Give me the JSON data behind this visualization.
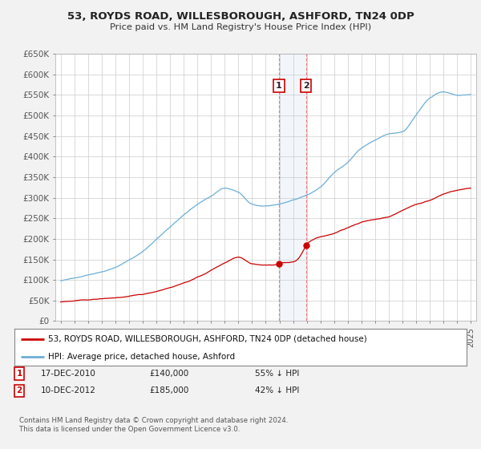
{
  "title": "53, ROYDS ROAD, WILLESBOROUGH, ASHFORD, TN24 0DP",
  "subtitle": "Price paid vs. HM Land Registry's House Price Index (HPI)",
  "ylim": [
    0,
    650000
  ],
  "yticks": [
    0,
    50000,
    100000,
    150000,
    200000,
    250000,
    300000,
    350000,
    400000,
    450000,
    500000,
    550000,
    600000,
    650000
  ],
  "ytick_labels": [
    "£0",
    "£50K",
    "£100K",
    "£150K",
    "£200K",
    "£250K",
    "£300K",
    "£350K",
    "£400K",
    "£450K",
    "£500K",
    "£550K",
    "£600K",
    "£650K"
  ],
  "hpi_color": "#6baed6",
  "price_color": "#cc0000",
  "sale1_date": 2010.96,
  "sale1_price": 140000,
  "sale2_date": 2012.94,
  "sale2_price": 185000,
  "legend1": "53, ROYDS ROAD, WILLESBOROUGH, ASHFORD, TN24 0DP (detached house)",
  "legend2": "HPI: Average price, detached house, Ashford",
  "footer": "Contains HM Land Registry data © Crown copyright and database right 2024.\nThis data is licensed under the Open Government Licence v3.0.",
  "background_color": "#f2f2f2",
  "plot_bg": "#ffffff",
  "hpi_seed": 42,
  "hpi_control_years": [
    1995,
    1996,
    1997,
    1998,
    1999,
    2000,
    2001,
    2002,
    2003,
    2004,
    2005,
    2006,
    2007,
    2008,
    2009,
    2010,
    2011,
    2012,
    2013,
    2014,
    2015,
    2016,
    2017,
    2018,
    2019,
    2020,
    2021,
    2022,
    2023,
    2024,
    2025
  ],
  "hpi_control_values": [
    97000,
    103000,
    112000,
    120000,
    132000,
    150000,
    170000,
    200000,
    230000,
    260000,
    285000,
    305000,
    325000,
    315000,
    285000,
    280000,
    285000,
    295000,
    305000,
    325000,
    360000,
    385000,
    420000,
    440000,
    455000,
    460000,
    500000,
    540000,
    555000,
    548000,
    550000
  ],
  "price_control_years": [
    1995,
    1997,
    1999,
    2001,
    2003,
    2005,
    2007,
    2008,
    2009,
    2010,
    2010.96,
    2011,
    2012,
    2012.94,
    2013,
    2015,
    2017,
    2019,
    2021,
    2022,
    2023,
    2024,
    2025
  ],
  "price_control_values": [
    46000,
    50000,
    55000,
    62000,
    80000,
    105000,
    140000,
    155000,
    140000,
    138000,
    140000,
    143000,
    145000,
    185000,
    190000,
    215000,
    240000,
    255000,
    285000,
    295000,
    310000,
    320000,
    325000
  ]
}
